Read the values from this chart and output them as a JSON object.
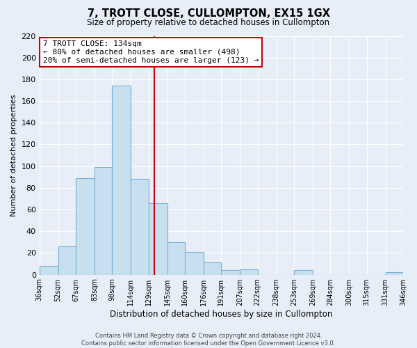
{
  "title": "7, TROTT CLOSE, CULLOMPTON, EX15 1GX",
  "subtitle": "Size of property relative to detached houses in Cullompton",
  "xlabel": "Distribution of detached houses by size in Cullompton",
  "ylabel": "Number of detached properties",
  "bar_color": "#c8dff0",
  "bar_edge_color": "#7ab0d4",
  "vline_color": "#cc0000",
  "vline_x": 134,
  "bin_edges": [
    36,
    52,
    67,
    83,
    98,
    114,
    129,
    145,
    160,
    176,
    191,
    207,
    222,
    238,
    253,
    269,
    284,
    300,
    315,
    331,
    346
  ],
  "bin_counts": [
    8,
    26,
    89,
    99,
    174,
    88,
    66,
    30,
    21,
    11,
    4,
    5,
    0,
    0,
    4,
    0,
    0,
    0,
    0,
    2
  ],
  "tick_labels": [
    "36sqm",
    "52sqm",
    "67sqm",
    "83sqm",
    "98sqm",
    "114sqm",
    "129sqm",
    "145sqm",
    "160sqm",
    "176sqm",
    "191sqm",
    "207sqm",
    "222sqm",
    "238sqm",
    "253sqm",
    "269sqm",
    "284sqm",
    "300sqm",
    "315sqm",
    "331sqm",
    "346sqm"
  ],
  "ylim": [
    0,
    220
  ],
  "yticks": [
    0,
    20,
    40,
    60,
    80,
    100,
    120,
    140,
    160,
    180,
    200,
    220
  ],
  "annotation_title": "7 TROTT CLOSE: 134sqm",
  "annotation_line1": "← 80% of detached houses are smaller (498)",
  "annotation_line2": "20% of semi-detached houses are larger (123) →",
  "annotation_box_color": "#ffffff",
  "annotation_box_edgecolor": "#cc0000",
  "footer1": "Contains HM Land Registry data © Crown copyright and database right 2024.",
  "footer2": "Contains public sector information licensed under the Open Government Licence v3.0.",
  "background_color": "#e8eef8",
  "grid_color": "#ffffff"
}
